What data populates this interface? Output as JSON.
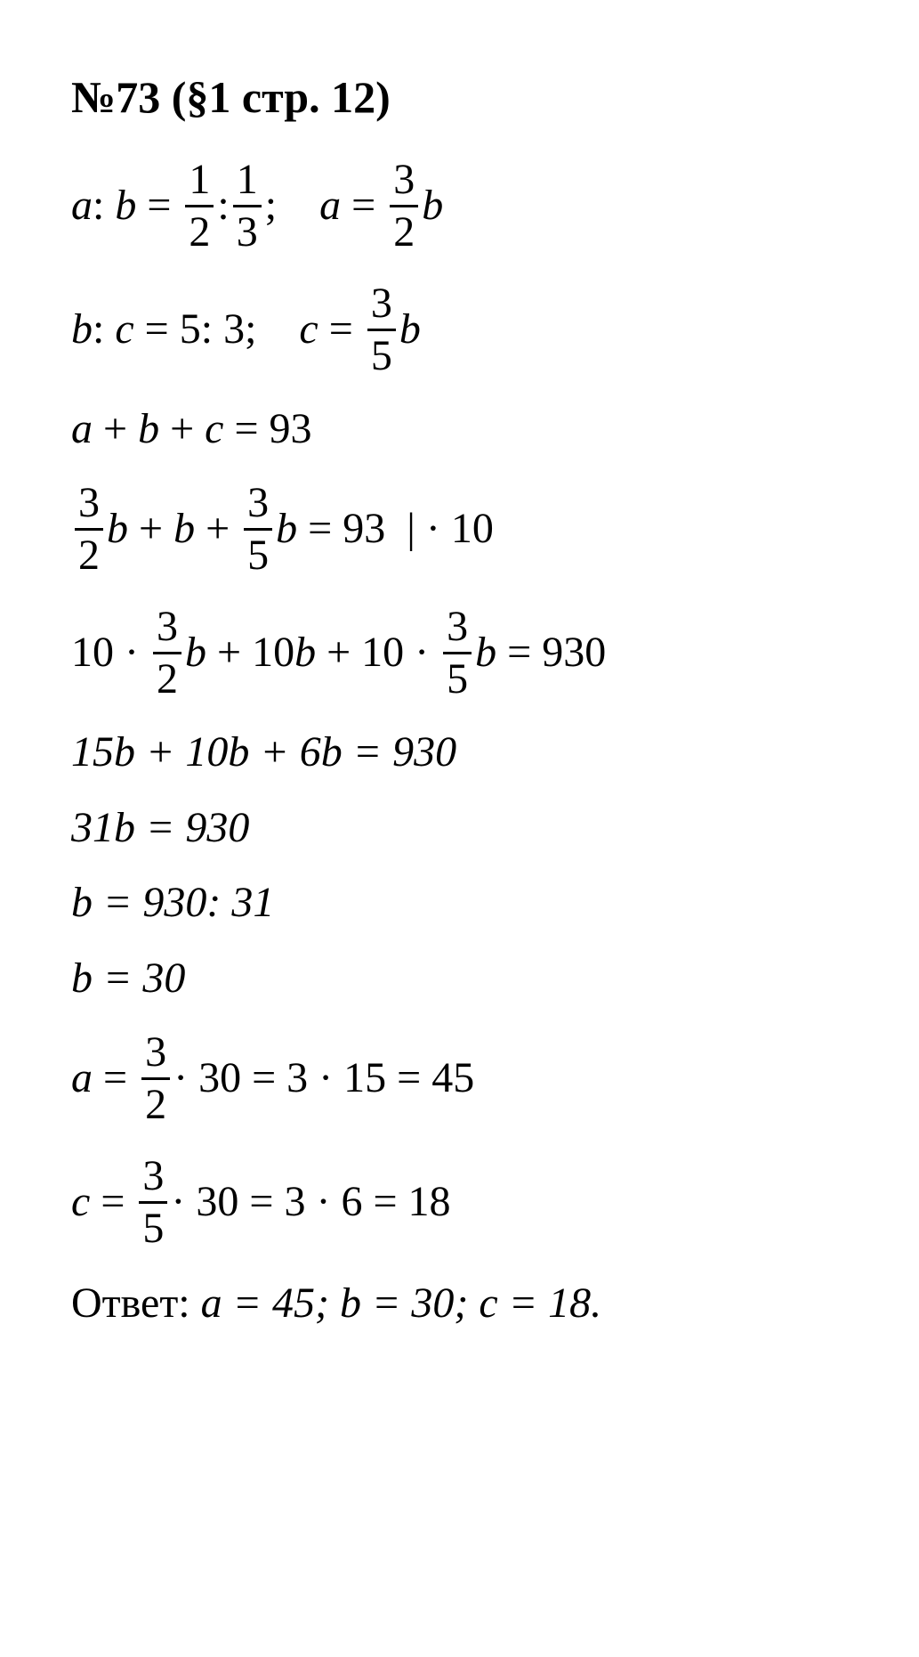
{
  "title": "№73 (§1 стр. 12)",
  "f1_2_n": "1",
  "f1_2_d": "2",
  "f1_3_n": "1",
  "f1_3_d": "3",
  "f3_2_n": "3",
  "f3_2_d": "2",
  "f3_5_n": "3",
  "f3_5_d": "5",
  "r53": "5: 3",
  "sum93": "93",
  "mul10": "| · 10",
  "ten": "10",
  "r930": "930",
  "l6": "15b + 10b + 6b = 930",
  "l7": "31b = 930",
  "l8": "b = 930: 31",
  "l9": "b = 30",
  "thirty": "30",
  "a_mid": "3 · 15",
  "a_res": "45",
  "c_mid": "3 · 6",
  "c_res": "18",
  "ans_label": "Ответ:",
  "ans_body": "a = 45; b = 30; c = 18."
}
